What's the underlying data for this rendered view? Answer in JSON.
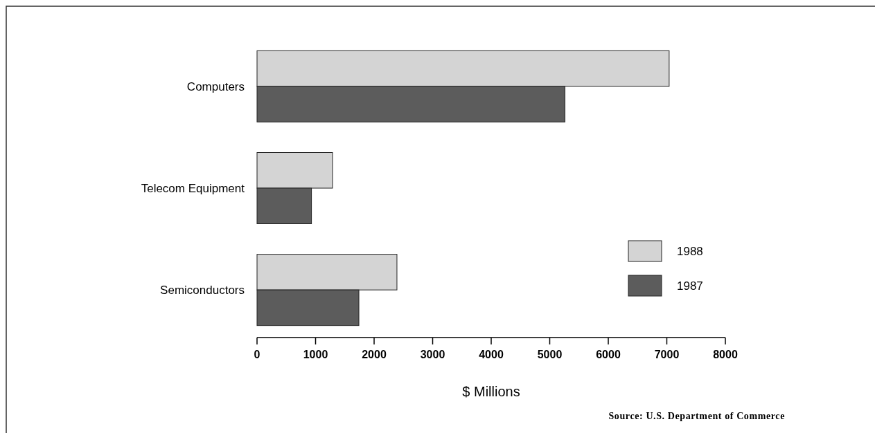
{
  "chart_data": {
    "type": "bar",
    "orientation": "horizontal",
    "xlabel": "$ Millions",
    "categories": [
      "Computers",
      "Telecom Equipment",
      "Semiconductors"
    ],
    "series": [
      {
        "name": "1988",
        "color": "#d4d4d4",
        "values": [
          7040,
          1290,
          2390
        ]
      },
      {
        "name": "1987",
        "color": "#5c5c5c",
        "values": [
          5260,
          930,
          1740
        ]
      }
    ],
    "xlim": [
      0,
      8000
    ],
    "xticks": [
      0,
      1000,
      2000,
      3000,
      4000,
      5000,
      6000,
      7000,
      8000
    ],
    "legend": "bottom right",
    "grid": false,
    "annotations": [
      "Source: U.S. Department of Commerce"
    ]
  }
}
